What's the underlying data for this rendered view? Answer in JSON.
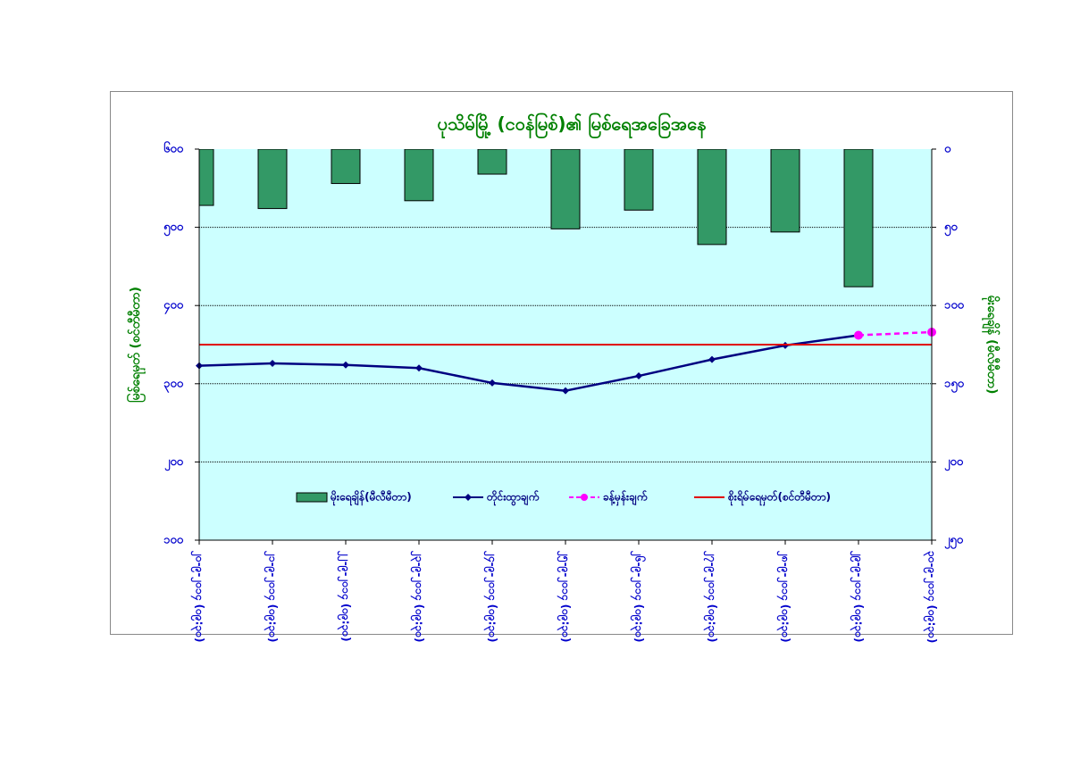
{
  "chart_data": {
    "type": "bar-line",
    "title": "ပုသိမ်မြို့ (ငဝန်မြစ်)၏ မြစ်ရေအခြေအနေ",
    "y_label": "မြစ်ရေမှတ် (စင်တီမီတာ)",
    "y2_label": "မိုးရေချိန် (မီလီမီတာ)",
    "categories": [
      "၂၀-၉-၂၀၁၄ (၀၉:၃၀)",
      "၂၁-၉-၂၀၁၄ (၀၉:၃၀)",
      "၂၂-၉-၂၀၁၄ (၀၉:၃၀)",
      "၂၃-၉-၂၀၁၄ (၀၉:၃၀)",
      "၂၄-၉-၂၀၁၄ (၀၉:၃၀)",
      "၂၅-၉-၂၀၁၄ (၀၉:၃၀)",
      "၂၆-၉-၂၀၁၄ (၀၉:၃၀)",
      "၂၇-၉-၂၀၁၄ (၀၉:၃၀)",
      "၂၈-၉-၂၀၁၄ (၀၉:၃၀)",
      "၂၉-၉-၂၀၁၄ (၀၉:၃၀)",
      "၃၀-၉-၂၀၁၄ (၀၉:၃၀)"
    ],
    "series": [
      {
        "name": "မိုးရေချိန်(မီလီမီတာ)",
        "kind": "bar",
        "axis": "y2",
        "color": "#339966",
        "values": [
          36,
          38,
          22,
          33,
          16,
          51,
          39,
          61,
          53,
          88,
          null
        ]
      },
      {
        "name": "တိုင်းထွာချက်",
        "kind": "line",
        "color": "#000080",
        "marker": "diamond",
        "values": [
          323,
          326,
          324,
          320,
          301,
          291,
          310,
          331,
          349,
          362,
          null
        ]
      },
      {
        "name": "ခန့်မှန်းချက်",
        "kind": "line",
        "color": "#ff00ff",
        "marker": "circle",
        "dashed": true,
        "values": [
          null,
          null,
          null,
          null,
          null,
          null,
          null,
          null,
          null,
          362,
          366
        ]
      },
      {
        "name": "စိုးရိမ်ရေမှတ်(စင်တီမီတာ)",
        "kind": "line",
        "color": "#e00000",
        "values": [
          350,
          350,
          350,
          350,
          350,
          350,
          350,
          350,
          350,
          350,
          350
        ]
      }
    ],
    "ylim": [
      100,
      600
    ],
    "yticks": [
      {
        "value": 100,
        "label": "၁၀၀"
      },
      {
        "value": 200,
        "label": "၂၀၀"
      },
      {
        "value": 300,
        "label": "၃၀၀"
      },
      {
        "value": 400,
        "label": "၄၀၀"
      },
      {
        "value": 500,
        "label": "၅၀၀"
      },
      {
        "value": 600,
        "label": "၆၀၀"
      }
    ],
    "y2lim": [
      250,
      0
    ],
    "y2ticks": [
      {
        "value": 0,
        "label": "၀"
      },
      {
        "value": 50,
        "label": "၅၀"
      },
      {
        "value": 100,
        "label": "၁၀၀"
      },
      {
        "value": 150,
        "label": "၁၅၀"
      },
      {
        "value": 200,
        "label": "၂၀၀"
      },
      {
        "value": 250,
        "label": "၂၅၀"
      }
    ],
    "grid": true,
    "legend": "bottom",
    "plot_background": "#ccffff"
  }
}
